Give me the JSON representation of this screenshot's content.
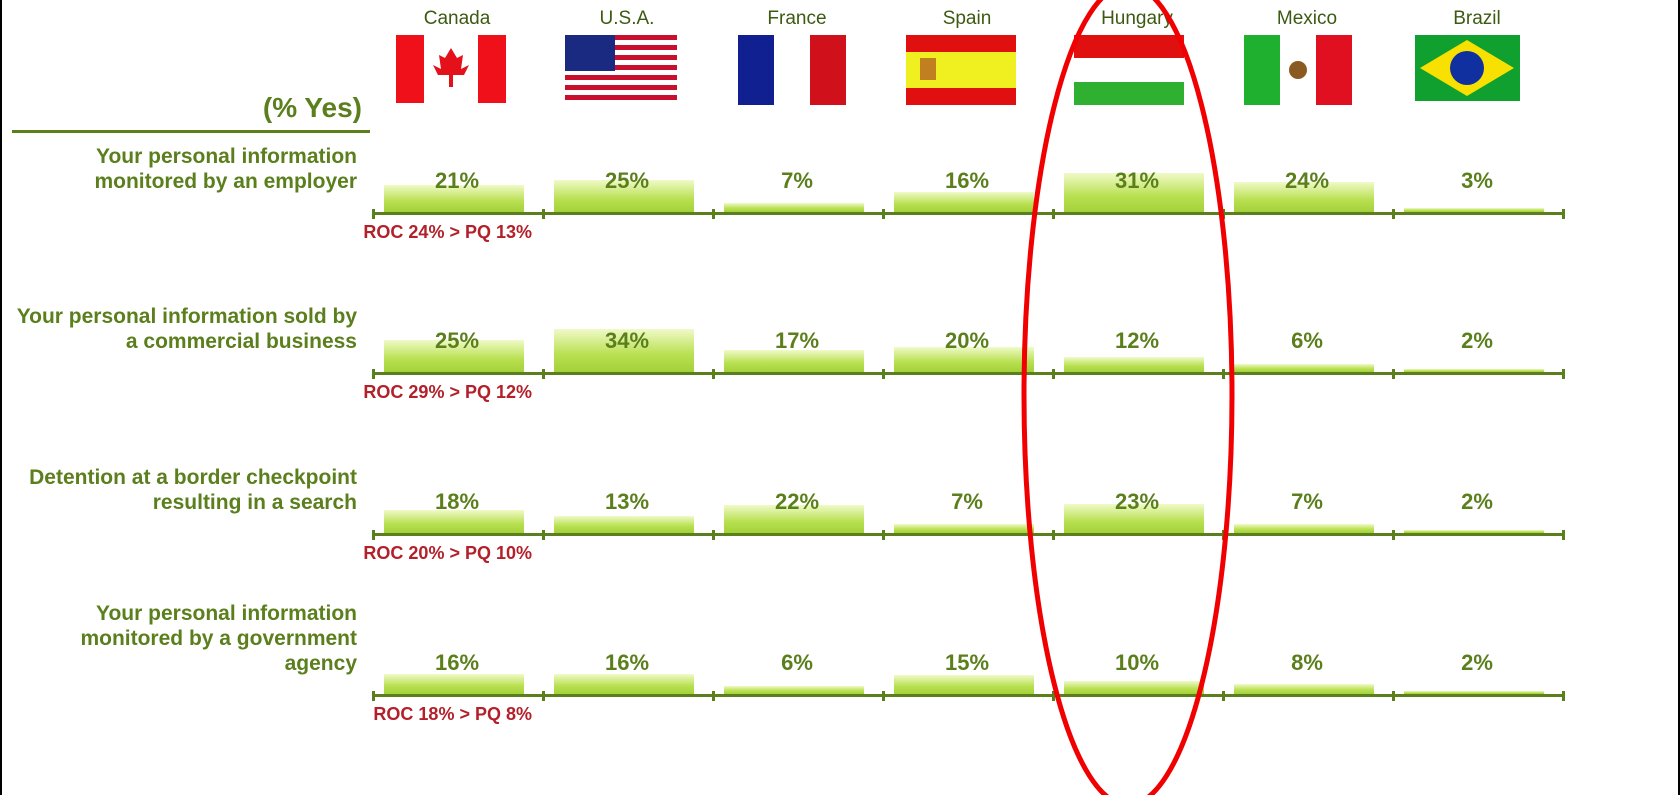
{
  "chart_data": {
    "type": "bar",
    "unit_label": "(% Yes)",
    "categories": [
      "Canada",
      "U.S.A.",
      "France",
      "Spain",
      "Hungary",
      "Mexico",
      "Brazil"
    ],
    "color": "#a8d63e",
    "series": [
      {
        "name": "Your personal information monitored by an employer",
        "values": [
          21,
          25,
          7,
          16,
          31,
          24,
          3
        ],
        "value_labels": [
          "21%",
          "25%",
          "7%",
          "16%",
          "31%",
          "24%",
          "3%"
        ],
        "annotation": "ROC 24% > PQ 13%"
      },
      {
        "name": "Your personal information sold by a commercial business",
        "values": [
          25,
          34,
          17,
          20,
          12,
          6,
          2
        ],
        "value_labels": [
          "25%",
          "34%",
          "17%",
          "20%",
          "12%",
          "6%",
          "2%"
        ],
        "annotation": "ROC 29% > PQ 12%"
      },
      {
        "name": "Detention at a border checkpoint resulting in a search",
        "values": [
          18,
          13,
          22,
          7,
          23,
          7,
          2
        ],
        "value_labels": [
          "18%",
          "13%",
          "22%",
          "7%",
          "23%",
          "7%",
          "2%"
        ],
        "annotation": "ROC 20% > PQ 10%"
      },
      {
        "name": "Your personal information monitored by a government agency",
        "values": [
          16,
          16,
          6,
          15,
          10,
          8,
          2
        ],
        "value_labels": [
          "16%",
          "16%",
          "6%",
          "15%",
          "10%",
          "8%",
          "2%"
        ],
        "annotation": "ROC 18% > PQ 8%"
      }
    ]
  }
}
